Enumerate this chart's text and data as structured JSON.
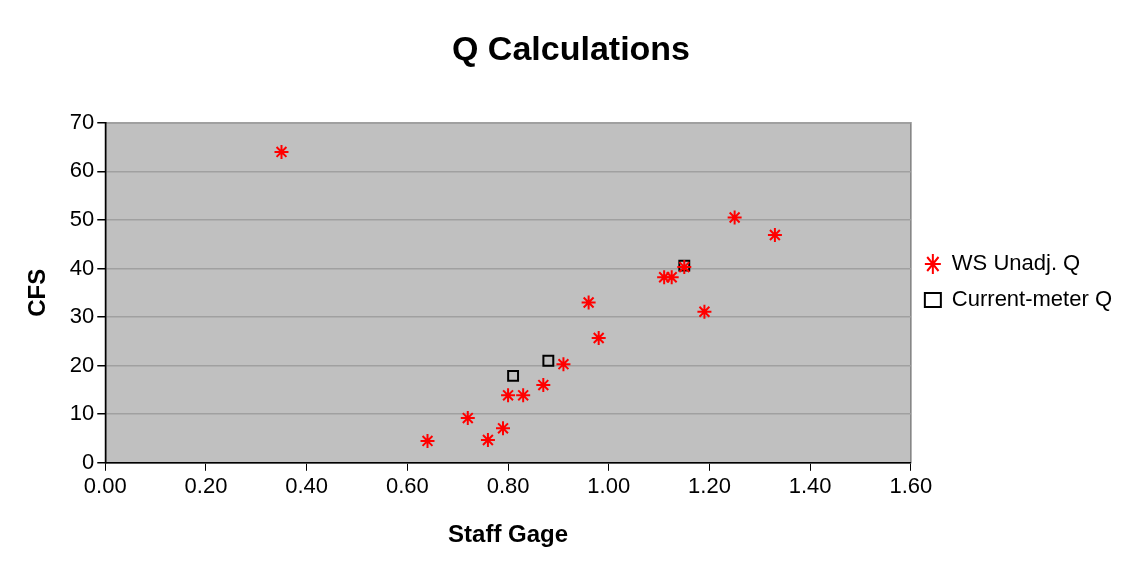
{
  "chart_data": {
    "type": "scatter",
    "title": "Q Calculations",
    "xlabel": "Staff Gage",
    "ylabel": "CFS",
    "xlim": [
      0,
      1.6
    ],
    "xticks": [
      {
        "value": 0,
        "label": "0.00"
      },
      {
        "value": 0.2,
        "label": "0.20"
      },
      {
        "value": 0.4,
        "label": "0.40"
      },
      {
        "value": 0.6,
        "label": "0.60"
      },
      {
        "value": 0.8,
        "label": "0.80"
      },
      {
        "value": 1.0,
        "label": "1.00"
      },
      {
        "value": 1.2,
        "label": "1.20"
      },
      {
        "value": 1.4,
        "label": "1.40"
      },
      {
        "value": 1.6,
        "label": "1.60"
      }
    ],
    "ylim": [
      0,
      70
    ],
    "yticks": [
      0,
      10,
      20,
      30,
      40,
      50,
      60,
      70
    ],
    "grid": "y",
    "legend": "right",
    "series": [
      {
        "name": "WS Unadj. Q",
        "color": "#ff0000",
        "marker": "cross",
        "x": [
          0.35,
          0.64,
          0.72,
          0.76,
          0.79,
          0.8,
          0.83,
          0.87,
          0.91,
          0.98,
          0.96,
          1.11,
          1.125,
          1.15,
          1.19,
          1.25,
          1.33
        ],
        "values": [
          64,
          4.5,
          9.2,
          4.7,
          7.1,
          13.9,
          13.9,
          16,
          20.3,
          25.7,
          33,
          38.2,
          38.2,
          40.3,
          31.1,
          50.5,
          46.9
        ]
      },
      {
        "name": "Current-meter Q",
        "color": "#000000",
        "marker": "square",
        "x": [
          0.81,
          0.88,
          1.15
        ],
        "values": [
          17.9,
          21,
          40.6
        ]
      }
    ]
  }
}
